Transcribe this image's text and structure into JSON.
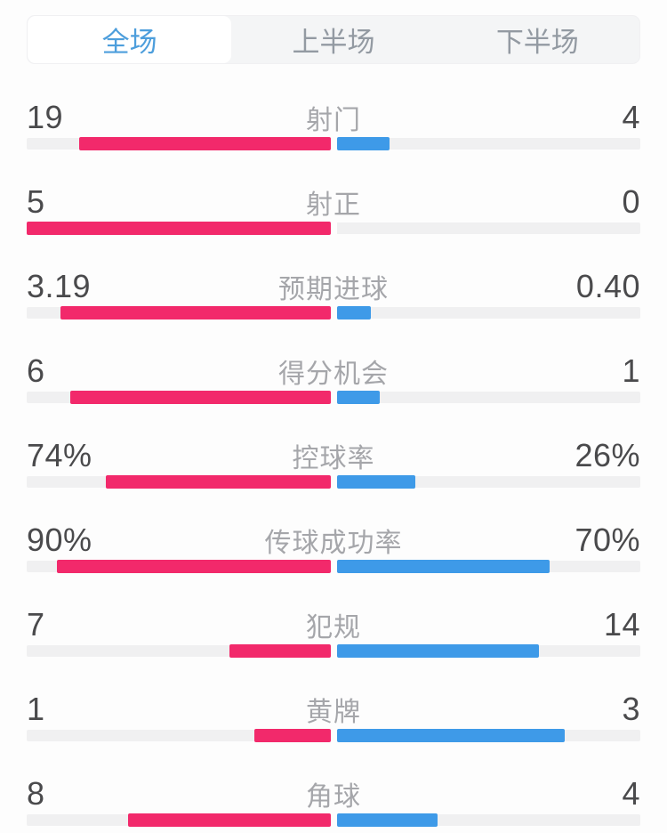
{
  "colors": {
    "home": "#F2296B",
    "away": "#3E9AE8",
    "track": "#F0F0F1",
    "tab_bg": "#F4F5F6",
    "tab_active_text": "#4D9EDC",
    "tab_inactive_text": "#939AA2",
    "value_text": "#4A4A4C",
    "label_text": "#A5A6AA"
  },
  "tabs": {
    "items": [
      {
        "id": "full",
        "label": "全场",
        "active": true
      },
      {
        "id": "first-half",
        "label": "上半场",
        "active": false
      },
      {
        "id": "second-half",
        "label": "下半场",
        "active": false
      }
    ]
  },
  "stats": {
    "rows": [
      {
        "id": "shots",
        "label": "射门",
        "home": "19",
        "away": "4"
      },
      {
        "id": "shots-on-target",
        "label": "射正",
        "home": "5",
        "away": "0"
      },
      {
        "id": "expected-goals",
        "label": "预期进球",
        "home": "3.19",
        "away": "0.40"
      },
      {
        "id": "big-chances",
        "label": "得分机会",
        "home": "6",
        "away": "1"
      },
      {
        "id": "possession",
        "label": "控球率",
        "home": "74%",
        "away": "26%"
      },
      {
        "id": "pass-success",
        "label": "传球成功率",
        "home": "90%",
        "away": "70%"
      },
      {
        "id": "fouls",
        "label": "犯规",
        "home": "7",
        "away": "14"
      },
      {
        "id": "yellow-cards",
        "label": "黄牌",
        "home": "1",
        "away": "3"
      },
      {
        "id": "corners",
        "label": "角球",
        "home": "8",
        "away": "4"
      }
    ]
  },
  "chart_data": {
    "type": "bar",
    "orientation": "horizontal-paired",
    "categories": [
      "射门",
      "射正",
      "预期进球",
      "得分机会",
      "控球率",
      "传球成功率",
      "犯规",
      "黄牌",
      "角球"
    ],
    "series": [
      {
        "name": "home-left-pink",
        "color": "#F2296B",
        "values": [
          19,
          5,
          3.19,
          6,
          74,
          90,
          7,
          1,
          8
        ]
      },
      {
        "name": "away-right-blue",
        "color": "#3E9AE8",
        "values": [
          4,
          0,
          0.4,
          1,
          26,
          70,
          14,
          3,
          4
        ]
      }
    ],
    "percent_categories": [
      "控球率",
      "传球成功率"
    ],
    "legend_position": "none",
    "grid": false
  }
}
